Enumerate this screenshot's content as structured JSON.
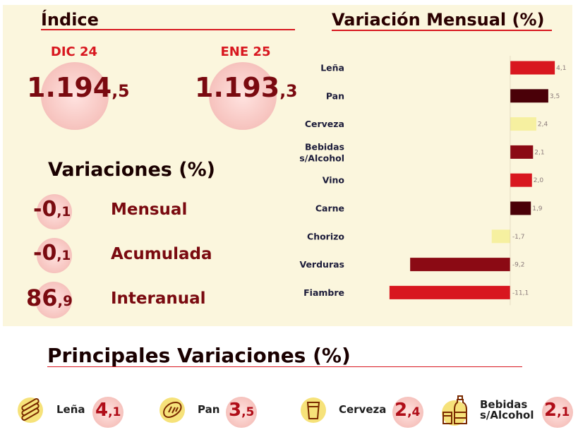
{
  "indice": {
    "title": "Índice",
    "periods": [
      {
        "label": "DIC 24",
        "int": "1.194",
        "dec": ",5"
      },
      {
        "label": "ENE 25",
        "int": "1.193",
        "dec": ",3"
      }
    ]
  },
  "variaciones": {
    "title": "Variaciones (%)",
    "items": [
      {
        "int": "-0",
        "dec": ",1",
        "label": "Mensual"
      },
      {
        "int": "-0",
        "dec": ",1",
        "label": "Acumulada"
      },
      {
        "int": "86",
        "dec": ",9",
        "label": "Interanual"
      }
    ]
  },
  "chart_data": {
    "type": "bar",
    "orientation": "horizontal",
    "title": "Variación Mensual (%)",
    "categories": [
      "Leña",
      "Pan",
      "Cerveza",
      "Bebidas s/Alcohol",
      "Vino",
      "Carne",
      "Chorizo",
      "Verduras",
      "Fiambre"
    ],
    "values": [
      4.1,
      3.5,
      2.4,
      2.1,
      2.0,
      1.9,
      -1.7,
      -9.2,
      -11.1
    ],
    "value_labels": [
      "4,1",
      "3,5",
      "2,4",
      "2,1",
      "2,0",
      "1,9",
      "-1,7",
      "-9,2",
      "-11,1"
    ],
    "bar_colors": [
      "#d8171f",
      "#4a0008",
      "#f6f0a0",
      "#8b0a14",
      "#d8171f",
      "#4a0008",
      "#f6f0a0",
      "#8b0a14",
      "#d8171f"
    ],
    "xlim": [
      -12,
      5
    ],
    "grid": false,
    "legend": "none"
  },
  "principales": {
    "title": "Principales Variaciones (%)",
    "items": [
      {
        "icon": "firewood-icon",
        "label": "Leña",
        "int": "4",
        "dec": ",1"
      },
      {
        "icon": "bread-icon",
        "label": "Pan",
        "int": "3",
        "dec": ",5"
      },
      {
        "icon": "beer-glass-icon",
        "label": "Cerveza",
        "int": "2",
        "dec": ",4"
      },
      {
        "icon": "soft-drinks-icon",
        "label": "Bebidas s/Alcohol",
        "int": "2",
        "dec": ",1"
      }
    ]
  },
  "colors": {
    "accent_red": "#d8171f",
    "dark_red": "#7a0a10",
    "panel_bg": "#fbf6dd",
    "icon_bg": "#f6e27a"
  }
}
